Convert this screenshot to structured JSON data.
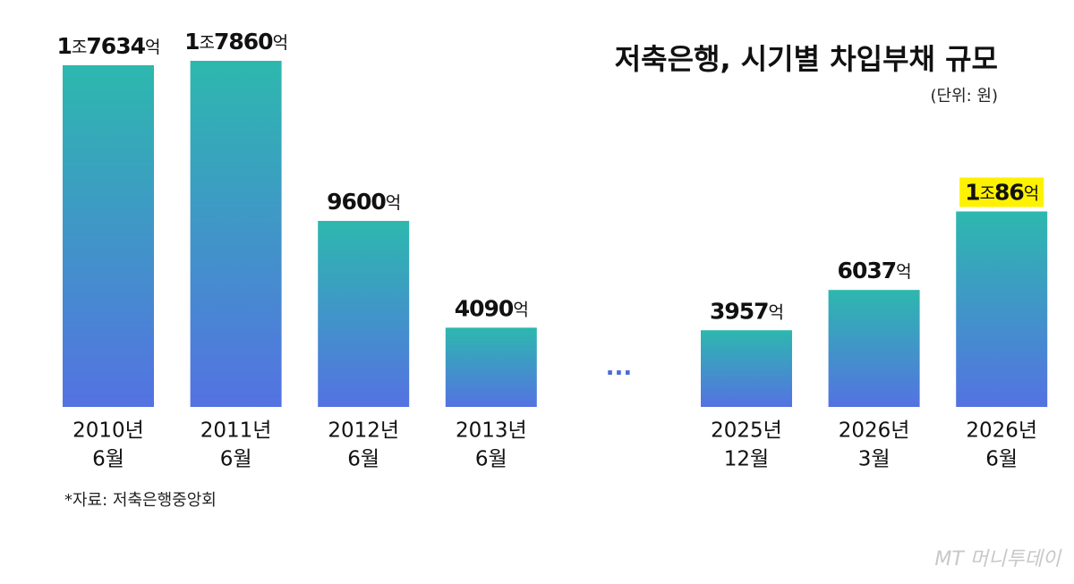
{
  "chart_data": {
    "type": "bar",
    "title": "저축은행, 시기별 차입부채 규모",
    "subtitle": "(단위: 원)",
    "source": "*자료: 저축은행중앙회",
    "watermark": "MT 머니투데이",
    "break_label": "···",
    "categories": [
      [
        "2010년",
        "6월"
      ],
      [
        "2011년",
        "6월"
      ],
      [
        "2012년",
        "6월"
      ],
      [
        "2013년",
        "6월"
      ],
      null,
      [
        "2025년",
        "12월"
      ],
      [
        "2026년",
        "3월"
      ],
      [
        "2026년",
        "6월"
      ]
    ],
    "values": [
      17634,
      17860,
      9600,
      4090,
      null,
      3957,
      6037,
      10086
    ],
    "value_labels": [
      "1조7634억",
      "1조7860억",
      "9600억",
      "4090억",
      null,
      "3957억",
      "6037억",
      "1조86억"
    ],
    "color_top": "#2db8ae",
    "color_bottom": "#5472e2",
    "label_highlight": {
      "index": 7,
      "color": "#fff200"
    },
    "ylim": [
      0,
      17860
    ]
  }
}
